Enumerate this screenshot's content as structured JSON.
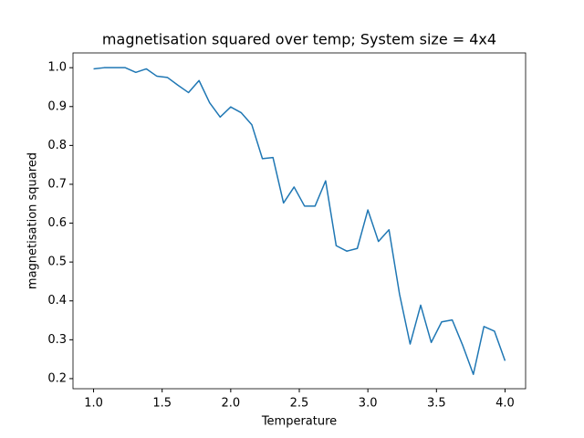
{
  "chart_data": {
    "type": "line",
    "title": "magnetisation squared over temp; System size = 4x4",
    "x_label": "Temperature",
    "y_label": "magnetisation squared",
    "x": [
      1.0,
      1.077,
      1.154,
      1.231,
      1.308,
      1.385,
      1.462,
      1.538,
      1.615,
      1.692,
      1.769,
      1.846,
      1.923,
      2.0,
      2.077,
      2.154,
      2.231,
      2.308,
      2.385,
      2.462,
      2.538,
      2.615,
      2.692,
      2.769,
      2.846,
      2.923,
      3.0,
      3.077,
      3.154,
      3.231,
      3.308,
      3.385,
      3.462,
      3.538,
      3.615,
      3.692,
      3.769,
      3.846,
      3.923,
      4.0
    ],
    "series": [
      {
        "color": "#1f77b4",
        "values": [
          0.997,
          1.0,
          1.0,
          1.0,
          0.988,
          0.997,
          0.978,
          0.975,
          0.955,
          0.936,
          0.967,
          0.91,
          0.873,
          0.899,
          0.884,
          0.853,
          0.766,
          0.769,
          0.652,
          0.693,
          0.644,
          0.644,
          0.709,
          0.542,
          0.528,
          0.535,
          0.634,
          0.553,
          0.583,
          0.417,
          0.289,
          0.389,
          0.293,
          0.346,
          0.351,
          0.285,
          0.211,
          0.334,
          0.322,
          0.246
        ]
      }
    ],
    "xlim": [
      0.85,
      4.15
    ],
    "ylim": [
      0.174,
      1.038
    ],
    "xticks": [
      {
        "value": 1,
        "label": "1.0"
      },
      {
        "value": 1.5,
        "label": "1.5"
      },
      {
        "value": 2,
        "label": "2.0"
      },
      {
        "value": 2.5,
        "label": "2.5"
      },
      {
        "value": 3,
        "label": "3.0"
      },
      {
        "value": 3.5,
        "label": "3.5"
      },
      {
        "value": 4,
        "label": "4.0"
      }
    ],
    "yticks": [
      {
        "value": 0.2,
        "label": "0.2"
      },
      {
        "value": 0.3,
        "label": "0.3"
      },
      {
        "value": 0.4,
        "label": "0.4"
      },
      {
        "value": 0.5,
        "label": "0.5"
      },
      {
        "value": 0.6,
        "label": "0.6"
      },
      {
        "value": 0.7,
        "label": "0.7"
      },
      {
        "value": 0.8,
        "label": "0.8"
      },
      {
        "value": 0.9,
        "label": "0.9"
      },
      {
        "value": 1,
        "label": "1.0"
      }
    ]
  }
}
